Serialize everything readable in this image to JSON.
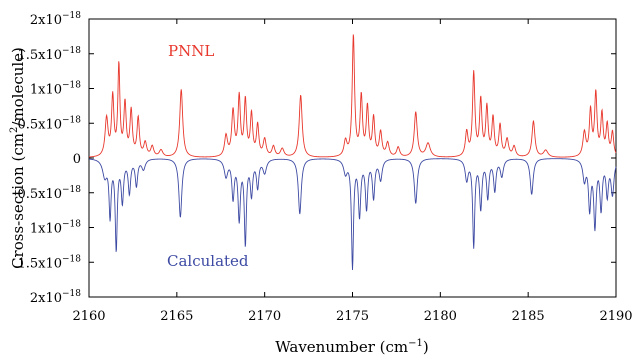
{
  "chart_data": {
    "type": "line",
    "title": "",
    "xlabel": "Wavenumber (cm",
    "xlabel_sup": "−1",
    "xlabel_end": ")",
    "ylabel": "Cross-section (cm",
    "ylabel_sup": "2",
    "ylabel_end": "/molecule)",
    "xlim": [
      2160,
      2190
    ],
    "ylim": [
      -2e-18,
      2e-18
    ],
    "x_ticks": [
      {
        "value": 2160,
        "label": "2160"
      },
      {
        "value": 2165,
        "label": "2165"
      },
      {
        "value": 2170,
        "label": "2170"
      },
      {
        "value": 2175,
        "label": "2175"
      },
      {
        "value": 2180,
        "label": "2180"
      },
      {
        "value": 2185,
        "label": "2185"
      },
      {
        "value": 2190,
        "label": "2190"
      }
    ],
    "y_ticks": [
      {
        "value": 2e-18,
        "mant": "2x10",
        "exp": "−18"
      },
      {
        "value": 1.5e-18,
        "mant": "1.5x10",
        "exp": "−18"
      },
      {
        "value": 1e-18,
        "mant": "1x10",
        "exp": "−18"
      },
      {
        "value": 5e-19,
        "mant": "0.5x10",
        "exp": "−18"
      },
      {
        "value": 0,
        "mant": "0",
        "exp": ""
      },
      {
        "value": -5e-19,
        "mant": "0.5x10",
        "exp": "−18"
      },
      {
        "value": -1e-18,
        "mant": "1x10",
        "exp": "−18"
      },
      {
        "value": -1.5e-18,
        "mant": "1.5x10",
        "exp": "−18"
      },
      {
        "value": -2e-18,
        "mant": "2x10",
        "exp": "−18"
      }
    ],
    "grid": false,
    "series": [
      {
        "name": "PNNL",
        "color": "#e8372c",
        "direction": "up",
        "baseline": 0,
        "peaks": [
          [
            2161.0,
            5.5e-19,
            0.1
          ],
          [
            2161.35,
            8.5e-19,
            0.08
          ],
          [
            2161.7,
            1.3e-18,
            0.07
          ],
          [
            2162.05,
            7.5e-19,
            0.08
          ],
          [
            2162.4,
            6.5e-19,
            0.08
          ],
          [
            2162.8,
            5.5e-19,
            0.08
          ],
          [
            2163.2,
            2e-19,
            0.1
          ],
          [
            2163.6,
            1.5e-19,
            0.1
          ],
          [
            2164.1,
            1e-19,
            0.12
          ],
          [
            2165.25,
            9.8e-19,
            0.1
          ],
          [
            2167.8,
            3e-19,
            0.1
          ],
          [
            2168.2,
            6.5e-19,
            0.09
          ],
          [
            2168.55,
            8.5e-19,
            0.08
          ],
          [
            2168.9,
            8e-19,
            0.08
          ],
          [
            2169.25,
            6e-19,
            0.08
          ],
          [
            2169.6,
            4.5e-19,
            0.08
          ],
          [
            2170.0,
            2.5e-19,
            0.1
          ],
          [
            2170.5,
            1.5e-19,
            0.1
          ],
          [
            2171.0,
            1.2e-19,
            0.12
          ],
          [
            2172.05,
            9e-19,
            0.1
          ],
          [
            2174.6,
            2.2e-19,
            0.1
          ],
          [
            2175.05,
            1.74e-18,
            0.08
          ],
          [
            2175.5,
            8.5e-19,
            0.08
          ],
          [
            2175.85,
            7e-19,
            0.08
          ],
          [
            2176.2,
            5.5e-19,
            0.08
          ],
          [
            2176.6,
            3.5e-19,
            0.09
          ],
          [
            2177.0,
            2e-19,
            0.1
          ],
          [
            2177.6,
            1.4e-19,
            0.1
          ],
          [
            2178.6,
            6.5e-19,
            0.1
          ],
          [
            2179.3,
            2e-19,
            0.15
          ],
          [
            2181.5,
            3.5e-19,
            0.09
          ],
          [
            2181.9,
            1.2e-18,
            0.08
          ],
          [
            2182.3,
            8e-19,
            0.08
          ],
          [
            2182.65,
            7e-19,
            0.08
          ],
          [
            2183.0,
            5.5e-19,
            0.08
          ],
          [
            2183.4,
            4.5e-19,
            0.08
          ],
          [
            2183.8,
            2.5e-19,
            0.1
          ],
          [
            2184.2,
            1.5e-19,
            0.1
          ],
          [
            2185.3,
            5.2e-19,
            0.1
          ],
          [
            2186.0,
            1e-19,
            0.15
          ],
          [
            2188.2,
            3.5e-19,
            0.1
          ],
          [
            2188.55,
            6.5e-19,
            0.08
          ],
          [
            2188.85,
            9e-19,
            0.08
          ],
          [
            2189.2,
            6e-19,
            0.08
          ],
          [
            2189.5,
            4.5e-19,
            0.08
          ],
          [
            2189.8,
            3.5e-19,
            0.08
          ]
        ]
      },
      {
        "name": "Calculated",
        "color": "#3d4aa3",
        "direction": "down",
        "baseline": 0,
        "peaks": [
          [
            2160.9,
            2.5e-19,
            0.15
          ],
          [
            2161.2,
            8e-19,
            0.07
          ],
          [
            2161.55,
            1.28e-18,
            0.07
          ],
          [
            2161.9,
            6e-19,
            0.08
          ],
          [
            2162.3,
            4.8e-19,
            0.08
          ],
          [
            2162.7,
            3.8e-19,
            0.08
          ],
          [
            2163.1,
            1.5e-19,
            0.12
          ],
          [
            2165.2,
            8.5e-19,
            0.1
          ],
          [
            2167.8,
            2.5e-19,
            0.12
          ],
          [
            2168.2,
            5.5e-19,
            0.08
          ],
          [
            2168.55,
            8.5e-19,
            0.08
          ],
          [
            2168.9,
            1.2e-18,
            0.07
          ],
          [
            2169.25,
            5e-19,
            0.08
          ],
          [
            2169.6,
            4e-19,
            0.08
          ],
          [
            2170.0,
            2e-19,
            0.12
          ],
          [
            2172.0,
            8e-19,
            0.1
          ],
          [
            2174.6,
            2e-19,
            0.12
          ],
          [
            2175.0,
            1.55e-18,
            0.07
          ],
          [
            2175.4,
            8e-19,
            0.08
          ],
          [
            2175.8,
            7e-19,
            0.08
          ],
          [
            2176.2,
            5.5e-19,
            0.08
          ],
          [
            2176.6,
            3e-19,
            0.1
          ],
          [
            2178.6,
            6.5e-19,
            0.1
          ],
          [
            2181.5,
            3e-19,
            0.1
          ],
          [
            2181.9,
            1.25e-18,
            0.07
          ],
          [
            2182.3,
            7e-19,
            0.08
          ],
          [
            2182.7,
            5.5e-19,
            0.08
          ],
          [
            2183.1,
            4.5e-19,
            0.08
          ],
          [
            2183.5,
            2.5e-19,
            0.1
          ],
          [
            2185.2,
            5.2e-19,
            0.1
          ],
          [
            2188.2,
            3e-19,
            0.1
          ],
          [
            2188.5,
            7e-19,
            0.08
          ],
          [
            2188.8,
            9.5e-19,
            0.08
          ],
          [
            2189.15,
            7e-19,
            0.08
          ],
          [
            2189.5,
            5e-19,
            0.08
          ],
          [
            2189.8,
            5e-19,
            0.1
          ]
        ]
      }
    ]
  }
}
